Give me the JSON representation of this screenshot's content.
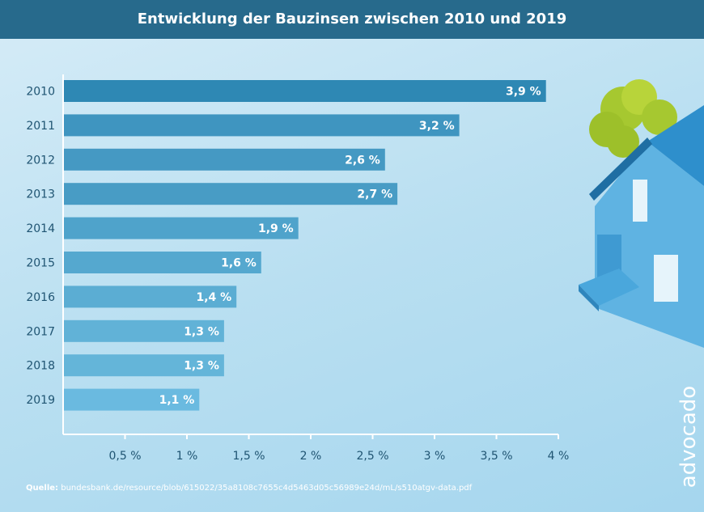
{
  "chart_data": {
    "type": "bar",
    "orientation": "horizontal",
    "title": "Entwicklung der Bauzinsen zwischen 2010 und 2019",
    "categories": [
      "2010",
      "2011",
      "2012",
      "2013",
      "2014",
      "2015",
      "2016",
      "2017",
      "2018",
      "2019"
    ],
    "values": [
      3.9,
      3.2,
      2.6,
      2.7,
      1.9,
      1.6,
      1.4,
      1.3,
      1.3,
      1.1
    ],
    "data_labels": [
      "3,9 %",
      "3,2 %",
      "2,6 %",
      "2,7 %",
      "1,9 %",
      "1,6 %",
      "1,4 %",
      "1,3 %",
      "1,3 %",
      "1,1 %"
    ],
    "xlim": [
      0,
      4
    ],
    "xticks": [
      0.5,
      1,
      1.5,
      2,
      2.5,
      3,
      3.5,
      4
    ],
    "xtick_labels": [
      "0,5 %",
      "1 %",
      "1,5 %",
      "2 %",
      "2,5 %",
      "3 %",
      "3,5 %",
      "4 %"
    ],
    "xlabel": "",
    "ylabel": "",
    "grid": false,
    "bar_colors": [
      "#2e88b4",
      "#3f95c0",
      "#4599c3",
      "#489cc5",
      "#4fa3cb",
      "#55a8cf",
      "#5badd3",
      "#61b2d7",
      "#64b5d9",
      "#6abae0"
    ]
  },
  "source": {
    "label": "Quelle:",
    "text": "bundesbank.de/resource/blob/615022/35a8108c7655c4d5463d05c56989e24d/mL/s510atgv-data.pdf"
  },
  "logo": "advocado"
}
